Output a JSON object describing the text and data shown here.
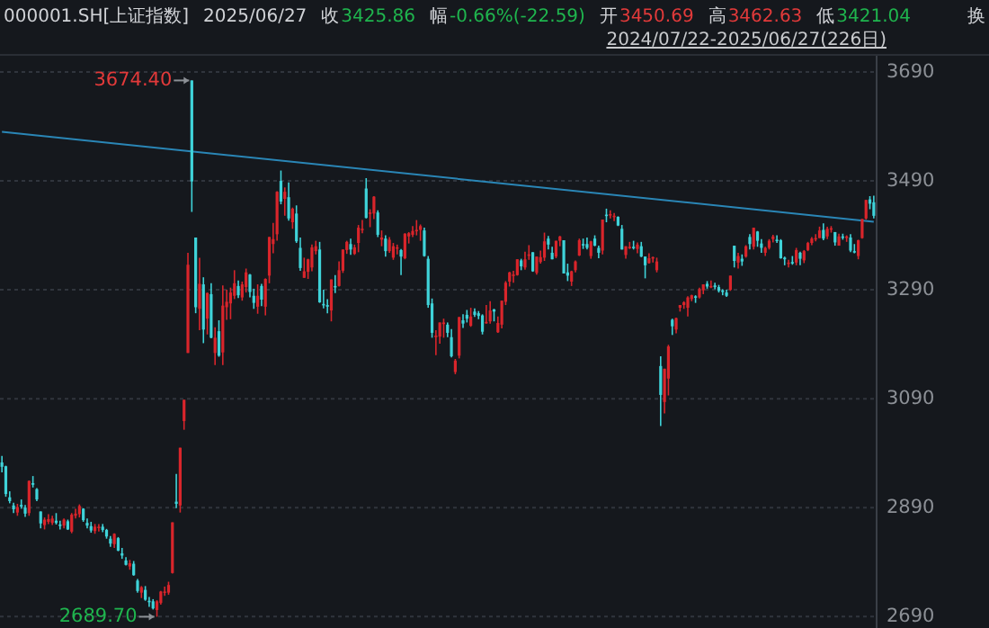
{
  "chart_data": {
    "type": "candlestick",
    "title": "000001.SH[上证指数]",
    "subtitle": "2024/07/22-2025/06/27(226日)",
    "annotations": [
      "2025/06/27",
      "收",
      "3425.86",
      "幅",
      "-0.66%(-22.59)",
      "开",
      "3450.69",
      "高",
      "3462.63",
      "低",
      "3421.04",
      "换",
      "3674.40",
      "2689.70"
    ],
    "ylim": [
      2669,
      3723
    ],
    "yticks": [
      2690,
      2890,
      3090,
      3290,
      3490,
      3690
    ],
    "grid": "y",
    "tick_labels": "y",
    "categories": [
      null,
      null,
      null,
      null,
      null,
      null,
      null,
      null,
      null,
      null,
      null,
      null,
      null,
      null,
      null,
      null,
      null,
      null,
      null,
      null,
      null,
      null,
      null,
      null,
      null,
      null,
      null,
      null,
      null,
      null,
      null,
      null,
      null,
      null,
      null,
      null,
      null,
      null,
      null,
      null,
      null,
      null,
      null,
      null,
      null,
      null,
      null,
      null,
      null,
      null,
      null,
      null,
      null,
      null,
      null,
      null,
      null,
      null,
      null,
      null,
      null,
      null,
      null,
      null,
      null,
      null,
      null,
      null,
      null,
      null,
      null,
      null,
      null,
      null,
      null,
      null,
      null,
      null,
      null,
      null,
      null,
      null,
      null,
      null,
      null,
      null,
      null,
      null,
      null,
      null,
      null,
      null,
      null,
      null,
      null,
      null,
      null,
      null,
      null,
      null,
      null,
      null,
      null,
      null,
      null,
      null,
      null,
      null,
      null,
      null,
      null,
      null,
      null,
      null,
      null,
      null,
      null,
      null,
      null,
      null,
      null,
      null,
      null,
      null,
      null,
      null,
      null,
      null,
      null,
      null,
      null,
      null,
      null,
      null,
      null,
      null,
      null,
      null,
      null,
      null,
      null,
      null,
      null,
      null,
      null,
      null,
      null,
      null,
      null,
      null,
      null,
      null,
      null,
      null,
      null,
      null,
      null,
      null,
      null,
      null,
      null,
      null,
      null,
      null,
      null,
      null,
      null,
      null,
      null,
      null,
      null,
      null,
      null,
      null,
      null,
      null,
      null,
      null,
      null,
      null,
      null,
      null,
      null,
      null,
      null,
      null,
      null,
      null,
      null,
      null,
      null,
      null,
      null,
      null,
      null,
      null,
      null,
      null,
      null,
      null,
      null,
      null,
      null,
      null,
      null,
      null,
      null,
      null,
      null,
      null,
      null,
      null,
      null,
      null,
      null,
      null,
      null,
      null,
      null,
      null,
      null,
      null,
      null,
      null,
      null,
      null
    ],
    "ohlc": [
      [
        2973,
        2985,
        2955,
        2965
      ],
      [
        2966,
        2967,
        2910,
        2915
      ],
      [
        2909,
        2920,
        2898,
        2902
      ],
      [
        2894,
        2899,
        2880,
        2887
      ],
      [
        2881,
        2897,
        2875,
        2891
      ],
      [
        2895,
        2905,
        2888,
        2892
      ],
      [
        2890,
        2895,
        2873,
        2879
      ],
      [
        2880,
        2940,
        2875,
        2939
      ],
      [
        2935,
        2948,
        2927,
        2932
      ],
      [
        2924,
        2926,
        2902,
        2905
      ],
      [
        2883,
        2883,
        2852,
        2861
      ],
      [
        2858,
        2872,
        2850,
        2868
      ],
      [
        2864,
        2878,
        2860,
        2869
      ],
      [
        2862,
        2875,
        2858,
        2870
      ],
      [
        2866,
        2880,
        2859,
        2862
      ],
      [
        2859,
        2866,
        2850,
        2858
      ],
      [
        2857,
        2870,
        2852,
        2868
      ],
      [
        2865,
        2868,
        2849,
        2850
      ],
      [
        2846,
        2880,
        2843,
        2877
      ],
      [
        2875,
        2888,
        2870,
        2879
      ],
      [
        2878,
        2896,
        2872,
        2893
      ],
      [
        2888,
        2889,
        2864,
        2867
      ],
      [
        2862,
        2870,
        2852,
        2857
      ],
      [
        2856,
        2864,
        2844,
        2848
      ],
      [
        2847,
        2860,
        2842,
        2855
      ],
      [
        2854,
        2860,
        2846,
        2855
      ],
      [
        2855,
        2860,
        2845,
        2849
      ],
      [
        2849,
        2851,
        2833,
        2837
      ],
      [
        2833,
        2838,
        2818,
        2824
      ],
      [
        2823,
        2843,
        2816,
        2842
      ],
      [
        2834,
        2836,
        2810,
        2811
      ],
      [
        2806,
        2816,
        2796,
        2802
      ],
      [
        2793,
        2799,
        2784,
        2785
      ],
      [
        2782,
        2794,
        2776,
        2788
      ],
      [
        2787,
        2792,
        2765,
        2766
      ],
      [
        2756,
        2759,
        2734,
        2737
      ],
      [
        2734,
        2746,
        2724,
        2744
      ],
      [
        2739,
        2746,
        2719,
        2721
      ],
      [
        2719,
        2726,
        2708,
        2717
      ],
      [
        2718,
        2722,
        2703,
        2705
      ],
      [
        2702,
        2720,
        2689.7,
        2718
      ],
      [
        2715,
        2737,
        2712,
        2736
      ],
      [
        2734,
        2745,
        2728,
        2736
      ],
      [
        2734,
        2754,
        2730,
        2748
      ],
      [
        2770,
        2863,
        2769,
        2863
      ],
      [
        2901,
        2952,
        2889,
        2897
      ],
      [
        2894,
        3000,
        2881,
        3000
      ],
      [
        3049,
        3088,
        3033,
        3088
      ],
      [
        3174,
        3358,
        3174,
        3336
      ],
      [
        3674.4,
        3674.4,
        3433,
        3489
      ],
      [
        3386,
        3386,
        3247,
        3258
      ],
      [
        3255,
        3349,
        3216,
        3301
      ],
      [
        3300,
        3313,
        3192,
        3217
      ],
      [
        3237,
        3285,
        3208,
        3284
      ],
      [
        3282,
        3302,
        3201,
        3202
      ],
      [
        3174,
        3221,
        3152,
        3202
      ],
      [
        3214,
        3234,
        3167,
        3169
      ],
      [
        3175,
        3298,
        3152,
        3261
      ],
      [
        3258,
        3290,
        3235,
        3268
      ],
      [
        3265,
        3294,
        3236,
        3285
      ],
      [
        3279,
        3326,
        3273,
        3302
      ],
      [
        3297,
        3307,
        3275,
        3280
      ],
      [
        3276,
        3305,
        3270,
        3300
      ],
      [
        3295,
        3329,
        3285,
        3322
      ],
      [
        3318,
        3319,
        3276,
        3286
      ],
      [
        3279,
        3292,
        3255,
        3266
      ],
      [
        3259,
        3300,
        3246,
        3279
      ],
      [
        3297,
        3301,
        3260,
        3272
      ],
      [
        3259,
        3311,
        3243,
        3310
      ],
      [
        3316,
        3387,
        3302,
        3387
      ],
      [
        3374,
        3413,
        3357,
        3383
      ],
      [
        3392,
        3471,
        3380,
        3470
      ],
      [
        3490,
        3509,
        3447,
        3452
      ],
      [
        3457,
        3478,
        3426,
        3470
      ],
      [
        3460,
        3487,
        3417,
        3421
      ],
      [
        3414,
        3441,
        3402,
        3439
      ],
      [
        3430,
        3445,
        3376,
        3379
      ],
      [
        3367,
        3386,
        3325,
        3330
      ],
      [
        3312,
        3349,
        3312,
        3324
      ],
      [
        3323,
        3347,
        3310,
        3346
      ],
      [
        3331,
        3373,
        3324,
        3368
      ],
      [
        3361,
        3380,
        3355,
        3370
      ],
      [
        3364,
        3378,
        3266,
        3267
      ],
      [
        3264,
        3290,
        3256,
        3263
      ],
      [
        3262,
        3273,
        3247,
        3259
      ],
      [
        3252,
        3309,
        3232,
        3309
      ],
      [
        3297,
        3317,
        3284,
        3295
      ],
      [
        3297,
        3342,
        3296,
        3326
      ],
      [
        3325,
        3364,
        3321,
        3364
      ],
      [
        3363,
        3380,
        3356,
        3378
      ],
      [
        3374,
        3384,
        3354,
        3364
      ],
      [
        3356,
        3373,
        3354,
        3368
      ],
      [
        3376,
        3409,
        3359,
        3404
      ],
      [
        3400,
        3418,
        3394,
        3402
      ],
      [
        3476,
        3495,
        3421,
        3422
      ],
      [
        3432,
        3438,
        3405,
        3432
      ],
      [
        3430,
        3462,
        3420,
        3461
      ],
      [
        3432,
        3436,
        3387,
        3391
      ],
      [
        3382,
        3399,
        3370,
        3386
      ],
      [
        3384,
        3390,
        3351,
        3361
      ],
      [
        3361,
        3387,
        3358,
        3382
      ],
      [
        3349,
        3376,
        3345,
        3370
      ],
      [
        3366,
        3373,
        3355,
        3368
      ],
      [
        3363,
        3365,
        3317,
        3351
      ],
      [
        3348,
        3394,
        3346,
        3393
      ],
      [
        3388,
        3396,
        3375,
        3394
      ],
      [
        3391,
        3407,
        3387,
        3398
      ],
      [
        3398,
        3418,
        3390,
        3400
      ],
      [
        3400,
        3410,
        3380,
        3407
      ],
      [
        3399,
        3404,
        3351,
        3352
      ],
      [
        3347,
        3352,
        3257,
        3262
      ],
      [
        3265,
        3274,
        3202,
        3211
      ],
      [
        3203,
        3216,
        3170,
        3206
      ],
      [
        3204,
        3230,
        3191,
        3230
      ],
      [
        3227,
        3237,
        3202,
        3230
      ],
      [
        3226,
        3230,
        3203,
        3211
      ],
      [
        3203,
        3218,
        3166,
        3168
      ],
      [
        3139,
        3163,
        3135,
        3160
      ],
      [
        3169,
        3240,
        3164,
        3240
      ],
      [
        3234,
        3245,
        3220,
        3228
      ],
      [
        3244,
        3253,
        3230,
        3237
      ],
      [
        3224,
        3257,
        3222,
        3241
      ],
      [
        3250,
        3256,
        3240,
        3244
      ],
      [
        3247,
        3251,
        3236,
        3242
      ],
      [
        3243,
        3245,
        3208,
        3213
      ],
      [
        3230,
        3262,
        3228,
        3231
      ],
      [
        3232,
        3269,
        3228,
        3252
      ],
      [
        3254,
        3255,
        3232,
        3250
      ],
      [
        3212,
        3241,
        3211,
        3229
      ],
      [
        3226,
        3270,
        3219,
        3270
      ],
      [
        3268,
        3306,
        3262,
        3303
      ],
      [
        3305,
        3323,
        3296,
        3322
      ],
      [
        3318,
        3325,
        3303,
        3318
      ],
      [
        3317,
        3346,
        3316,
        3346
      ],
      [
        3344,
        3347,
        3326,
        3333
      ],
      [
        3331,
        3360,
        3327,
        3346
      ],
      [
        3355,
        3372,
        3345,
        3355
      ],
      [
        3359,
        3359,
        3323,
        3324
      ],
      [
        3321,
        3351,
        3318,
        3351
      ],
      [
        3341,
        3362,
        3338,
        3350
      ],
      [
        3349,
        3395,
        3343,
        3379
      ],
      [
        3384,
        3389,
        3364,
        3373
      ],
      [
        3358,
        3369,
        3346,
        3346
      ],
      [
        3351,
        3380,
        3348,
        3380
      ],
      [
        3380,
        3389,
        3370,
        3388
      ],
      [
        3381,
        3381,
        3320,
        3320
      ],
      [
        3322,
        3338,
        3306,
        3316
      ],
      [
        3305,
        3325,
        3297,
        3324
      ],
      [
        3326,
        3344,
        3322,
        3342
      ],
      [
        3353,
        3384,
        3352,
        3381
      ],
      [
        3374,
        3384,
        3365,
        3372
      ],
      [
        3374,
        3386,
        3364,
        3367
      ],
      [
        3352,
        3380,
        3347,
        3379
      ],
      [
        3384,
        3390,
        3370,
        3371
      ],
      [
        3367,
        3371,
        3348,
        3358
      ],
      [
        3362,
        3419,
        3355,
        3419
      ],
      [
        3428,
        3439,
        3414,
        3426
      ],
      [
        3429,
        3436,
        3421,
        3429
      ],
      [
        3424,
        3431,
        3416,
        3426
      ],
      [
        3424,
        3425,
        3407,
        3408
      ],
      [
        3402,
        3409,
        3364,
        3364
      ],
      [
        3354,
        3370,
        3347,
        3370
      ],
      [
        3366,
        3378,
        3365,
        3369
      ],
      [
        3369,
        3380,
        3364,
        3368
      ],
      [
        3365,
        3377,
        3357,
        3373
      ],
      [
        3370,
        3378,
        3350,
        3351
      ],
      [
        3351,
        3351,
        3311,
        3335
      ],
      [
        3339,
        3357,
        3338,
        3348
      ],
      [
        3350,
        3351,
        3340,
        3350
      ],
      [
        3326,
        3349,
        3322,
        3342
      ],
      [
        3150,
        3168,
        3040,
        3097
      ],
      [
        3084,
        3145,
        3063,
        3145
      ],
      [
        3127,
        3189,
        3096,
        3186
      ],
      [
        3235,
        3237,
        3207,
        3223
      ],
      [
        3217,
        3239,
        3210,
        3238
      ],
      [
        3257,
        3262,
        3250,
        3262
      ],
      [
        3262,
        3269,
        3255,
        3267
      ],
      [
        3257,
        3278,
        3241,
        3276
      ],
      [
        3273,
        3281,
        3269,
        3280
      ],
      [
        3278,
        3280,
        3266,
        3277
      ],
      [
        3276,
        3294,
        3274,
        3291
      ],
      [
        3289,
        3300,
        3282,
        3300
      ],
      [
        3301,
        3306,
        3292,
        3296
      ],
      [
        3296,
        3307,
        3293,
        3297
      ],
      [
        3298,
        3303,
        3291,
        3295
      ],
      [
        3295,
        3299,
        3285,
        3288
      ],
      [
        3289,
        3291,
        3280,
        3286
      ],
      [
        3285,
        3290,
        3277,
        3279
      ],
      [
        3290,
        3316,
        3288,
        3316
      ],
      [
        3371,
        3371,
        3331,
        3343
      ],
      [
        3340,
        3358,
        3329,
        3352
      ],
      [
        3347,
        3355,
        3334,
        3342
      ],
      [
        3351,
        3372,
        3349,
        3370
      ],
      [
        3387,
        3392,
        3364,
        3374
      ],
      [
        3369,
        3404,
        3364,
        3404
      ],
      [
        3397,
        3398,
        3369,
        3380
      ],
      [
        3375,
        3383,
        3358,
        3367
      ],
      [
        3358,
        3369,
        3352,
        3367
      ],
      [
        3367,
        3383,
        3364,
        3380
      ],
      [
        3383,
        3391,
        3377,
        3388
      ],
      [
        3382,
        3390,
        3376,
        3380
      ],
      [
        3381,
        3383,
        3347,
        3348
      ],
      [
        3349,
        3351,
        3335,
        3346
      ],
      [
        3339,
        3345,
        3331,
        3340
      ],
      [
        3341,
        3352,
        3336,
        3339
      ],
      [
        3340,
        3367,
        3335,
        3363
      ],
      [
        3358,
        3360,
        3335,
        3347
      ],
      [
        3344,
        3363,
        3339,
        3361
      ],
      [
        3363,
        3378,
        3361,
        3376
      ],
      [
        3376,
        3387,
        3372,
        3384
      ],
      [
        3385,
        3392,
        3379,
        3385
      ],
      [
        3385,
        3406,
        3385,
        3399
      ],
      [
        3400,
        3412,
        3381,
        3384
      ],
      [
        3388,
        3406,
        3383,
        3402
      ],
      [
        3401,
        3407,
        3395,
        3403
      ],
      [
        3396,
        3396,
        3371,
        3377
      ],
      [
        3371,
        3393,
        3371,
        3388
      ],
      [
        3388,
        3393,
        3382,
        3387
      ],
      [
        3385,
        3390,
        3378,
        3388
      ],
      [
        3386,
        3392,
        3359,
        3362
      ],
      [
        3361,
        3374,
        3357,
        3359
      ],
      [
        3352,
        3382,
        3346,
        3381
      ],
      [
        3385,
        3420,
        3384,
        3420
      ],
      [
        3421,
        3455,
        3419,
        3455
      ],
      [
        3456,
        3462,
        3438,
        3448
      ],
      [
        3450.69,
        3462.63,
        3421.04,
        3425.86
      ]
    ],
    "series": [
      {
        "type": "line",
        "color": "#2a86b6",
        "values": [
          3580,
          null,
          null,
          null,
          null,
          null,
          null,
          null,
          null,
          null,
          null,
          null,
          null,
          null,
          null,
          null,
          null,
          null,
          null,
          null,
          null,
          null,
          null,
          null,
          null,
          null,
          null,
          null,
          null,
          null,
          null,
          null,
          null,
          null,
          null,
          null,
          null,
          null,
          null,
          null,
          null,
          null,
          null,
          null,
          null,
          null,
          null,
          null,
          null,
          null,
          null,
          null,
          null,
          null,
          null,
          null,
          null,
          null,
          null,
          null,
          null,
          null,
          null,
          null,
          null,
          null,
          null,
          null,
          null,
          null,
          null,
          null,
          null,
          null,
          null,
          null,
          null,
          null,
          null,
          null,
          null,
          null,
          null,
          null,
          null,
          null,
          null,
          null,
          null,
          null,
          null,
          null,
          null,
          null,
          null,
          null,
          null,
          null,
          null,
          null,
          null,
          null,
          null,
          null,
          null,
          null,
          null,
          null,
          null,
          null,
          null,
          null,
          null,
          null,
          null,
          null,
          null,
          null,
          null,
          null,
          null,
          null,
          null,
          null,
          null,
          null,
          null,
          null,
          null,
          null,
          null,
          null,
          null,
          null,
          null,
          null,
          null,
          null,
          null,
          null,
          null,
          null,
          null,
          null,
          null,
          null,
          null,
          null,
          null,
          null,
          null,
          null,
          null,
          null,
          null,
          null,
          null,
          null,
          null,
          null,
          null,
          null,
          null,
          null,
          null,
          null,
          null,
          null,
          null,
          null,
          null,
          null,
          null,
          null,
          null,
          null,
          null,
          null,
          null,
          null,
          null,
          null,
          null,
          null,
          null,
          null,
          null,
          null,
          null,
          null,
          null,
          null,
          null,
          null,
          null,
          null,
          null,
          null,
          null,
          null,
          null,
          null,
          null,
          null,
          null,
          null,
          null,
          null,
          null,
          null,
          null,
          null,
          null,
          null,
          null,
          null,
          null,
          null,
          null,
          null,
          null,
          null,
          null,
          null,
          null,
          3415
        ]
      }
    ]
  }
}
